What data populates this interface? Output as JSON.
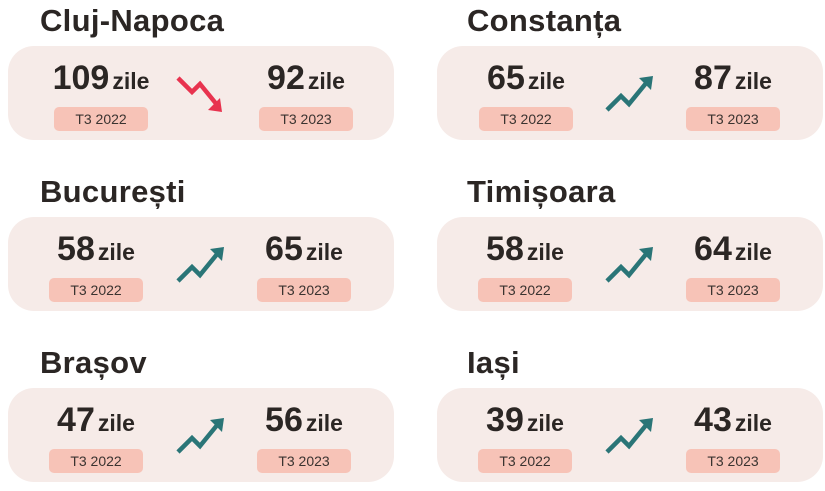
{
  "unit": "zile",
  "colors": {
    "up": "#2a7577",
    "down": "#e8334f",
    "card": "#f6ebe8",
    "badge": "#f7c3b7"
  },
  "cities": [
    {
      "name": "Cluj-Napoca",
      "trend": "down",
      "before": {
        "value": "109",
        "period": "T3 2022"
      },
      "after": {
        "value": "92",
        "period": "T3 2023"
      }
    },
    {
      "name": "Constanța",
      "trend": "up",
      "before": {
        "value": "65",
        "period": "T3 2022"
      },
      "after": {
        "value": "87",
        "period": "T3 2023"
      }
    },
    {
      "name": "București",
      "trend": "up",
      "before": {
        "value": "58",
        "period": "T3 2022"
      },
      "after": {
        "value": "65",
        "period": "T3 2023"
      }
    },
    {
      "name": "Timișoara",
      "trend": "up",
      "before": {
        "value": "58",
        "period": "T3 2022"
      },
      "after": {
        "value": "64",
        "period": "T3 2023"
      }
    },
    {
      "name": "Brașov",
      "trend": "up",
      "before": {
        "value": "47",
        "period": "T3 2022"
      },
      "after": {
        "value": "56",
        "period": "T3 2023"
      }
    },
    {
      "name": "Iași",
      "trend": "up",
      "before": {
        "value": "39",
        "period": "T3 2022"
      },
      "after": {
        "value": "43",
        "period": "T3 2023"
      }
    }
  ]
}
